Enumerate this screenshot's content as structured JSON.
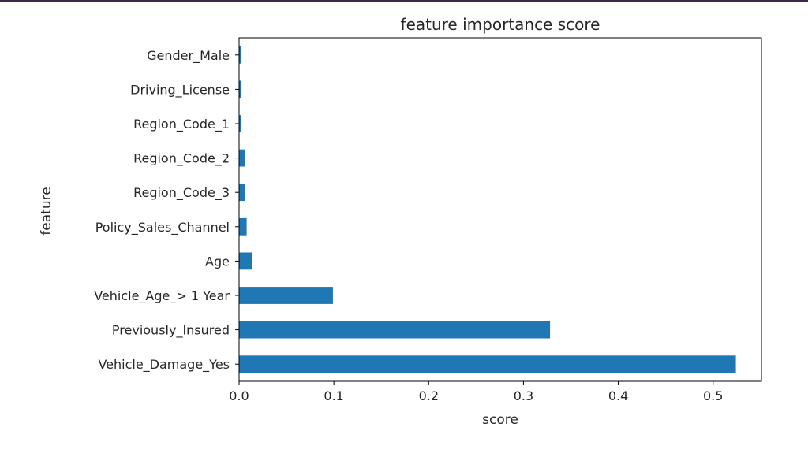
{
  "chart_data": {
    "type": "bar",
    "orientation": "horizontal",
    "title": "feature importance score",
    "xlabel": "score",
    "ylabel": "feature",
    "xlim": [
      0,
      0.551
    ],
    "grid": false,
    "bar_color": "#1f77b4",
    "categories": [
      "Vehicle_Damage_Yes",
      "Previously_Insured",
      "Vehicle_Age_> 1 Year",
      "Age",
      "Policy_Sales_Channel",
      "Region_Code_3",
      "Region_Code_2",
      "Region_Code_1",
      "Driving_License",
      "Gender_Male"
    ],
    "values": [
      0.524,
      0.328,
      0.099,
      0.014,
      0.008,
      0.006,
      0.006,
      0.002,
      0.002,
      0.002
    ],
    "x_ticks": [
      {
        "value": 0.0,
        "label": "0.0"
      },
      {
        "value": 0.1,
        "label": "0.1"
      },
      {
        "value": 0.2,
        "label": "0.2"
      },
      {
        "value": 0.3,
        "label": "0.3"
      },
      {
        "value": 0.4,
        "label": "0.4"
      },
      {
        "value": 0.5,
        "label": "0.5"
      }
    ]
  }
}
